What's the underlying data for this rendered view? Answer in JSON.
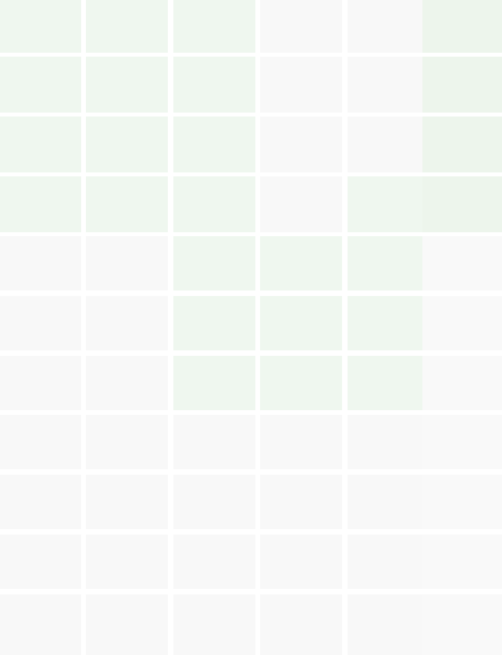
{
  "grid": {
    "rows": [
      [
        "green",
        "green",
        "green",
        "gray",
        "gray",
        "green"
      ],
      [
        "green",
        "green",
        "green",
        "gray",
        "gray",
        "green"
      ],
      [
        "green",
        "green",
        "green",
        "gray",
        "gray",
        "green"
      ],
      [
        "green",
        "green",
        "green",
        "gray",
        "green",
        "green"
      ],
      [
        "gray",
        "gray",
        "green",
        "green",
        "green",
        "gray"
      ],
      [
        "gray",
        "gray",
        "green",
        "green",
        "green",
        "gray"
      ],
      [
        "gray",
        "gray",
        "green",
        "green",
        "green",
        "gray"
      ],
      [
        "gray",
        "gray",
        "gray",
        "gray",
        "gray",
        "gray"
      ],
      [
        "gray",
        "gray",
        "gray",
        "gray",
        "gray",
        "gray"
      ],
      [
        "gray",
        "gray",
        "gray",
        "gray",
        "gray",
        "gray"
      ],
      [
        "gray",
        "gray",
        "gray",
        "gray",
        "gray",
        "gray"
      ]
    ]
  },
  "colors": {
    "green": "#eff7ef",
    "gray": "#f8f8f8",
    "gap": "#ffffff"
  }
}
